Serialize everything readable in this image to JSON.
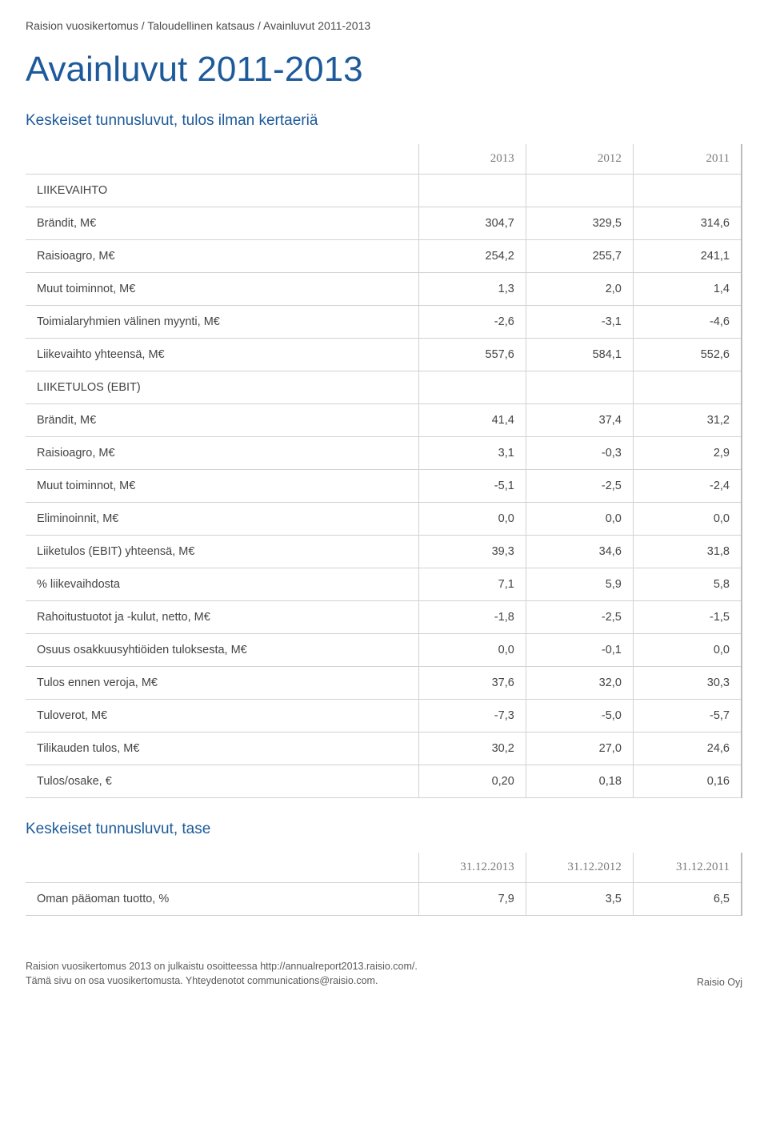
{
  "breadcrumb": "Raision vuosikertomus / Taloudellinen katsaus / Avainluvut 2011-2013",
  "title": "Avainluvut 2011-2013",
  "table1": {
    "subtitle": "Keskeiset tunnusluvut, tulos ilman kertaeriä",
    "headers": [
      "",
      "2013",
      "2012",
      "2011"
    ],
    "rows": [
      {
        "label": "LIIKEVAIHTO",
        "vals": [
          "",
          "",
          ""
        ]
      },
      {
        "label": "Brändit, M€",
        "vals": [
          "304,7",
          "329,5",
          "314,6"
        ]
      },
      {
        "label": "Raisioagro, M€",
        "vals": [
          "254,2",
          "255,7",
          "241,1"
        ]
      },
      {
        "label": "Muut toiminnot, M€",
        "vals": [
          "1,3",
          "2,0",
          "1,4"
        ]
      },
      {
        "label": "Toimialaryhmien välinen myynti, M€",
        "vals": [
          "-2,6",
          "-3,1",
          "-4,6"
        ]
      },
      {
        "label": "Liikevaihto yhteensä, M€",
        "vals": [
          "557,6",
          "584,1",
          "552,6"
        ]
      },
      {
        "label": "LIIKETULOS (EBIT)",
        "vals": [
          "",
          "",
          ""
        ]
      },
      {
        "label": "Brändit, M€",
        "vals": [
          "41,4",
          "37,4",
          "31,2"
        ]
      },
      {
        "label": "Raisioagro, M€",
        "vals": [
          "3,1",
          "-0,3",
          "2,9"
        ]
      },
      {
        "label": "Muut toiminnot, M€",
        "vals": [
          "-5,1",
          "-2,5",
          "-2,4"
        ]
      },
      {
        "label": "Eliminoinnit, M€",
        "vals": [
          "0,0",
          "0,0",
          "0,0"
        ]
      },
      {
        "label": "Liiketulos (EBIT) yhteensä, M€",
        "vals": [
          "39,3",
          "34,6",
          "31,8"
        ]
      },
      {
        "label": "% liikevaihdosta",
        "vals": [
          "7,1",
          "5,9",
          "5,8"
        ]
      },
      {
        "label": "Rahoitustuotot ja -kulut, netto, M€",
        "vals": [
          "-1,8",
          "-2,5",
          "-1,5"
        ]
      },
      {
        "label": "Osuus osakkuusyhtiöiden tuloksesta, M€",
        "vals": [
          "0,0",
          "-0,1",
          "0,0"
        ]
      },
      {
        "label": "Tulos ennen veroja, M€",
        "vals": [
          "37,6",
          "32,0",
          "30,3"
        ]
      },
      {
        "label": "Tuloverot, M€",
        "vals": [
          "-7,3",
          "-5,0",
          "-5,7"
        ]
      },
      {
        "label": "Tilikauden tulos, M€",
        "vals": [
          "30,2",
          "27,0",
          "24,6"
        ]
      },
      {
        "label": "Tulos/osake, €",
        "vals": [
          "0,20",
          "0,18",
          "0,16"
        ]
      }
    ]
  },
  "table2": {
    "subtitle": "Keskeiset tunnusluvut, tase",
    "headers": [
      "",
      "31.12.2013",
      "31.12.2012",
      "31.12.2011"
    ],
    "rows": [
      {
        "label": "Oman pääoman tuotto, %",
        "vals": [
          "7,9",
          "3,5",
          "6,5"
        ]
      }
    ]
  },
  "footer": {
    "line1": "Raision vuosikertomus 2013 on julkaistu osoitteessa http://annualreport2013.raisio.com/.",
    "line2": "Tämä sivu on osa vuosikertomusta. Yhteydenotot communications@raisio.com.",
    "company": "Raisio Oyj"
  },
  "colors": {
    "title": "#1d5a9a",
    "header_text": "#7a7a7a",
    "body_text": "#444444",
    "border": "#d2d2d2",
    "right_border": "#bcbcbc",
    "background": "#ffffff"
  }
}
